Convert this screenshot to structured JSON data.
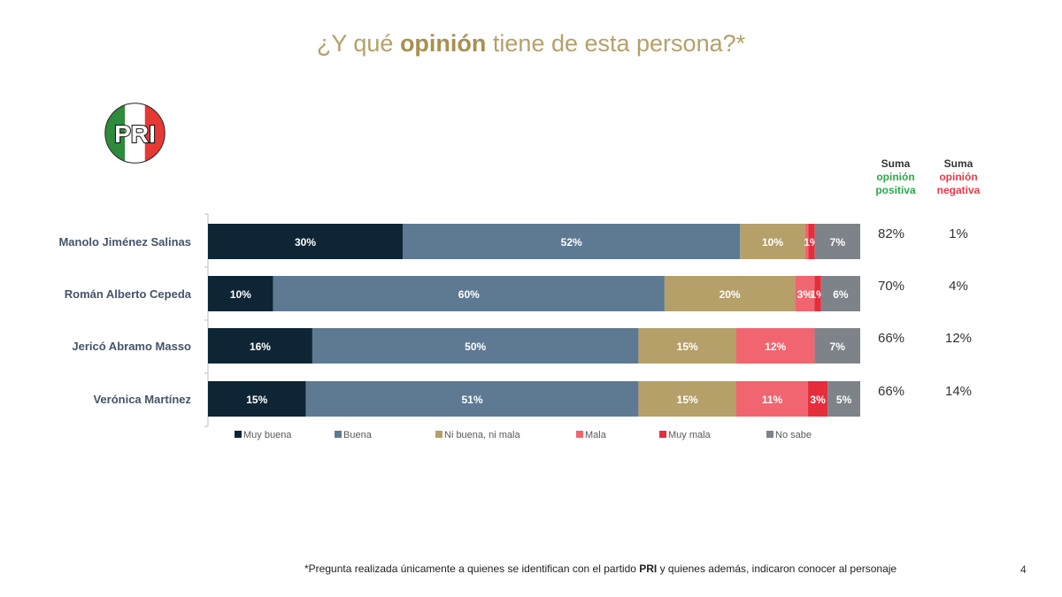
{
  "title": {
    "pre": "¿Y qué ",
    "bold": "opinión",
    "post": " tiene de esta persona?*"
  },
  "logo": {
    "text": "PRI",
    "colors": [
      "#2E8B3C",
      "#FFFFFF",
      "#E53935"
    ]
  },
  "column_headers": {
    "positive": {
      "line1": "Suma",
      "line2": "opinión",
      "line3": "positiva"
    },
    "negative": {
      "line1": "Suma",
      "line2": "opinión",
      "line3": "negativa"
    }
  },
  "chart_data": {
    "type": "bar",
    "orientation": "horizontal",
    "stacked": true,
    "title": "¿Y qué opinión tiene de esta persona?*",
    "categories": [
      "Manolo Jiménez Salinas",
      "Román Alberto Cepeda",
      "Jericó Abramo Masso",
      "Verónica Martínez"
    ],
    "series": [
      {
        "name": "Muy buena",
        "color": "#0E2535",
        "values": [
          30,
          10,
          16,
          15
        ],
        "labels": [
          "30%",
          "10%",
          "16%",
          "15%"
        ]
      },
      {
        "name": "Buena",
        "color": "#5E7A92",
        "values": [
          52,
          60,
          50,
          51
        ],
        "labels": [
          "52%",
          "60%",
          "50%",
          "51%"
        ]
      },
      {
        "name": "Ni buena, ni mala",
        "color": "#B5A06A",
        "values": [
          10,
          20,
          15,
          15
        ],
        "labels": [
          "10%",
          "20%",
          "15%",
          "15%"
        ]
      },
      {
        "name": "Mala",
        "color": "#F0656F",
        "values": [
          0.5,
          3,
          12,
          11
        ],
        "labels": [
          "",
          "3%",
          "12%",
          "11%"
        ]
      },
      {
        "name": "Muy mala",
        "color": "#E52D3C",
        "values": [
          1,
          1,
          0,
          3
        ],
        "labels": [
          "1%",
          "1%",
          "",
          "3%"
        ]
      },
      {
        "name": "No sabe",
        "color": "#7E8389",
        "values": [
          7,
          6,
          7,
          5
        ],
        "labels": [
          "7%",
          "6%",
          "7%",
          "5%"
        ]
      }
    ],
    "sum_positive": [
      "82%",
      "70%",
      "66%",
      "66%"
    ],
    "sum_negative": [
      "1%",
      "4%",
      "12%",
      "14%"
    ],
    "xlim": [
      0,
      100
    ],
    "legend": "bottom"
  },
  "footnote": {
    "pre": "*Pregunta realizada únicamente a quienes se identifican con el partido ",
    "bold": "PRI",
    "post": "  y quienes además, indicaron conocer al personaje"
  },
  "page_number": "4"
}
